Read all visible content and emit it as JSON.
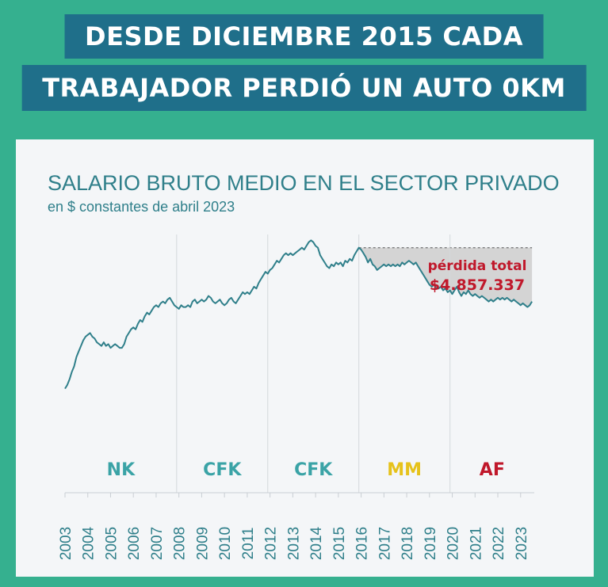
{
  "headline": {
    "line1": "DESDE DICIEMBRE 2015 CADA",
    "line2": "TRABAJADOR PERDIÓ UN AUTO 0KM"
  },
  "colors": {
    "background": "#35b08f",
    "headline_bg": "#1f6f8a",
    "line": "#2f7f8a",
    "loss_fill": "#d4d4d4",
    "loss_text": "#c0182b",
    "nk": "#3aa3a6",
    "cfk": "#3aa3a6",
    "mm": "#e6c21a",
    "af": "#c0182b"
  },
  "chart_data": {
    "type": "line",
    "title": "SALARIO BRUTO MEDIO EN EL SECTOR PRIVADO",
    "subtitle": "en $ constantes de abril 2023",
    "xlabel": "",
    "ylabel": "",
    "grid": false,
    "x_ticks": [
      "2003",
      "2004",
      "2005",
      "2006",
      "2007",
      "2008",
      "2009",
      "2010",
      "2011",
      "2012",
      "2013",
      "2014",
      "2015",
      "2016",
      "2017",
      "2018",
      "2019",
      "2020",
      "2021",
      "2022",
      "2023"
    ],
    "xlim": [
      2003.0,
      2023.6
    ],
    "ylim": [
      0,
      100
    ],
    "series": [
      {
        "values": [
          [
            2003.0,
            16
          ],
          [
            2003.1,
            18
          ],
          [
            2003.2,
            21
          ],
          [
            2003.3,
            25
          ],
          [
            2003.4,
            28
          ],
          [
            2003.5,
            33
          ],
          [
            2003.6,
            36
          ],
          [
            2003.7,
            39
          ],
          [
            2003.8,
            42
          ],
          [
            2003.9,
            44
          ],
          [
            2004.0,
            45
          ],
          [
            2004.1,
            46
          ],
          [
            2004.2,
            44
          ],
          [
            2004.3,
            43
          ],
          [
            2004.4,
            41
          ],
          [
            2004.5,
            40
          ],
          [
            2004.6,
            39
          ],
          [
            2004.7,
            41
          ],
          [
            2004.8,
            39
          ],
          [
            2004.9,
            40
          ],
          [
            2005.0,
            38
          ],
          [
            2005.1,
            39
          ],
          [
            2005.2,
            40
          ],
          [
            2005.3,
            39
          ],
          [
            2005.4,
            38
          ],
          [
            2005.5,
            38
          ],
          [
            2005.6,
            40
          ],
          [
            2005.7,
            44
          ],
          [
            2005.8,
            46
          ],
          [
            2005.9,
            48
          ],
          [
            2006.0,
            49
          ],
          [
            2006.1,
            48
          ],
          [
            2006.2,
            51
          ],
          [
            2006.3,
            53
          ],
          [
            2006.4,
            52
          ],
          [
            2006.5,
            55
          ],
          [
            2006.6,
            57
          ],
          [
            2006.7,
            56
          ],
          [
            2006.8,
            58
          ],
          [
            2006.9,
            60
          ],
          [
            2007.0,
            61
          ],
          [
            2007.1,
            60
          ],
          [
            2007.2,
            62
          ],
          [
            2007.3,
            63
          ],
          [
            2007.4,
            62
          ],
          [
            2007.5,
            64
          ],
          [
            2007.6,
            65
          ],
          [
            2007.7,
            63
          ],
          [
            2007.8,
            61
          ],
          [
            2007.9,
            60
          ],
          [
            2008.0,
            59
          ],
          [
            2008.1,
            61
          ],
          [
            2008.2,
            60
          ],
          [
            2008.3,
            60
          ],
          [
            2008.4,
            61
          ],
          [
            2008.5,
            60
          ],
          [
            2008.6,
            63
          ],
          [
            2008.7,
            64
          ],
          [
            2008.8,
            62
          ],
          [
            2008.9,
            63
          ],
          [
            2009.0,
            64
          ],
          [
            2009.1,
            63
          ],
          [
            2009.2,
            64
          ],
          [
            2009.3,
            66
          ],
          [
            2009.4,
            65
          ],
          [
            2009.5,
            63
          ],
          [
            2009.6,
            62
          ],
          [
            2009.7,
            63
          ],
          [
            2009.8,
            64
          ],
          [
            2009.9,
            62
          ],
          [
            2010.0,
            61
          ],
          [
            2010.1,
            62
          ],
          [
            2010.2,
            64
          ],
          [
            2010.3,
            65
          ],
          [
            2010.4,
            63
          ],
          [
            2010.5,
            62
          ],
          [
            2010.6,
            64
          ],
          [
            2010.7,
            66
          ],
          [
            2010.8,
            68
          ],
          [
            2010.9,
            67
          ],
          [
            2011.0,
            68
          ],
          [
            2011.1,
            67
          ],
          [
            2011.2,
            69
          ],
          [
            2011.3,
            71
          ],
          [
            2011.4,
            70
          ],
          [
            2011.5,
            73
          ],
          [
            2011.6,
            75
          ],
          [
            2011.7,
            77
          ],
          [
            2011.8,
            79
          ],
          [
            2011.9,
            78
          ],
          [
            2012.0,
            80
          ],
          [
            2012.1,
            81
          ],
          [
            2012.2,
            83
          ],
          [
            2012.3,
            85
          ],
          [
            2012.4,
            84
          ],
          [
            2012.5,
            86
          ],
          [
            2012.6,
            88
          ],
          [
            2012.7,
            89
          ],
          [
            2012.8,
            88
          ],
          [
            2012.9,
            89
          ],
          [
            2013.0,
            88
          ],
          [
            2013.1,
            89
          ],
          [
            2013.2,
            90
          ],
          [
            2013.3,
            91
          ],
          [
            2013.4,
            92
          ],
          [
            2013.5,
            91
          ],
          [
            2013.6,
            93
          ],
          [
            2013.7,
            95
          ],
          [
            2013.8,
            96
          ],
          [
            2013.9,
            95
          ],
          [
            2014.0,
            93
          ],
          [
            2014.1,
            92
          ],
          [
            2014.2,
            88
          ],
          [
            2014.3,
            86
          ],
          [
            2014.4,
            84
          ],
          [
            2014.5,
            82
          ],
          [
            2014.6,
            81
          ],
          [
            2014.7,
            83
          ],
          [
            2014.8,
            82
          ],
          [
            2014.9,
            84
          ],
          [
            2015.0,
            83
          ],
          [
            2015.1,
            84
          ],
          [
            2015.2,
            82
          ],
          [
            2015.3,
            85
          ],
          [
            2015.4,
            84
          ],
          [
            2015.5,
            86
          ],
          [
            2015.6,
            85
          ],
          [
            2015.7,
            88
          ],
          [
            2015.8,
            90
          ],
          [
            2015.9,
            92
          ],
          [
            2016.0,
            91
          ],
          [
            2016.1,
            89
          ],
          [
            2016.2,
            87
          ],
          [
            2016.3,
            84
          ],
          [
            2016.4,
            86
          ],
          [
            2016.5,
            83
          ],
          [
            2016.6,
            82
          ],
          [
            2016.7,
            80
          ],
          [
            2016.8,
            81
          ],
          [
            2016.9,
            82
          ],
          [
            2017.0,
            83
          ],
          [
            2017.1,
            82
          ],
          [
            2017.2,
            83
          ],
          [
            2017.3,
            82
          ],
          [
            2017.4,
            83
          ],
          [
            2017.5,
            82
          ],
          [
            2017.6,
            83
          ],
          [
            2017.7,
            82
          ],
          [
            2017.8,
            84
          ],
          [
            2017.9,
            83
          ],
          [
            2018.0,
            84
          ],
          [
            2018.1,
            85
          ],
          [
            2018.2,
            84
          ],
          [
            2018.3,
            83
          ],
          [
            2018.4,
            84
          ],
          [
            2018.5,
            82
          ],
          [
            2018.6,
            80
          ],
          [
            2018.7,
            78
          ],
          [
            2018.8,
            76
          ],
          [
            2018.9,
            74
          ],
          [
            2019.0,
            72
          ],
          [
            2019.1,
            71
          ],
          [
            2019.2,
            72
          ],
          [
            2019.3,
            70
          ],
          [
            2019.4,
            70
          ],
          [
            2019.5,
            71
          ],
          [
            2019.6,
            69
          ],
          [
            2019.7,
            70
          ],
          [
            2019.8,
            68
          ],
          [
            2019.9,
            69
          ],
          [
            2020.0,
            67
          ],
          [
            2020.1,
            69
          ],
          [
            2020.2,
            71
          ],
          [
            2020.3,
            68
          ],
          [
            2020.4,
            66
          ],
          [
            2020.5,
            68
          ],
          [
            2020.6,
            67
          ],
          [
            2020.7,
            69
          ],
          [
            2020.8,
            67
          ],
          [
            2020.9,
            66
          ],
          [
            2021.0,
            67
          ],
          [
            2021.1,
            66
          ],
          [
            2021.2,
            65
          ],
          [
            2021.3,
            66
          ],
          [
            2021.4,
            65
          ],
          [
            2021.5,
            64
          ],
          [
            2021.6,
            63
          ],
          [
            2021.7,
            64
          ],
          [
            2021.8,
            63
          ],
          [
            2021.9,
            64
          ],
          [
            2022.0,
            65
          ],
          [
            2022.1,
            64
          ],
          [
            2022.2,
            65
          ],
          [
            2022.3,
            64
          ],
          [
            2022.4,
            65
          ],
          [
            2022.5,
            64
          ],
          [
            2022.6,
            63
          ],
          [
            2022.7,
            64
          ],
          [
            2022.8,
            63
          ],
          [
            2022.9,
            62
          ],
          [
            2023.0,
            61
          ],
          [
            2023.1,
            62
          ],
          [
            2023.2,
            61
          ],
          [
            2023.3,
            60
          ],
          [
            2023.4,
            61
          ],
          [
            2023.5,
            63
          ]
        ]
      }
    ],
    "loss_area": {
      "from": 2015.9,
      "to": 2023.5,
      "reference_value": 92,
      "label_line1": "pérdida total",
      "label_line2": "$4.857.337"
    },
    "periods": [
      {
        "label": "NK",
        "start": 2003.0,
        "end": 2007.9,
        "color_key": "nk"
      },
      {
        "label": "CFK",
        "start": 2007.9,
        "end": 2011.9,
        "color_key": "cfk"
      },
      {
        "label": "CFK",
        "start": 2011.9,
        "end": 2015.9,
        "color_key": "cfk"
      },
      {
        "label": "MM",
        "start": 2015.9,
        "end": 2019.9,
        "color_key": "mm"
      },
      {
        "label": "AF",
        "start": 2019.9,
        "end": 2023.6,
        "color_key": "af"
      }
    ]
  }
}
